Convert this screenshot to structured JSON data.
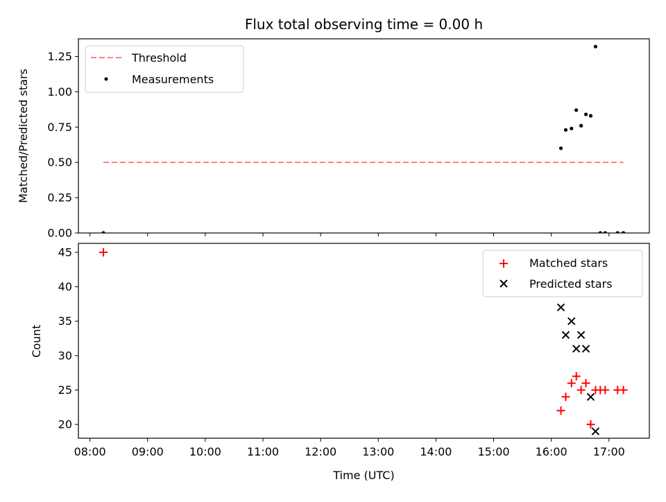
{
  "chart_data": [
    {
      "type": "scatter",
      "title": "Flux total observing time = 0.00 h",
      "xlabel": "",
      "ylabel": "Matched/Predicted stars",
      "xlim": [
        "07:48",
        "17:42"
      ],
      "ylim": [
        0,
        1.375
      ],
      "yticks": [
        "0.00",
        "0.25",
        "0.50",
        "0.75",
        "1.00",
        "1.25"
      ],
      "legend_position": "upper-left",
      "legend": [
        {
          "label": "Threshold",
          "kind": "dashed-line",
          "color": "#ff7f7f"
        },
        {
          "label": "Measurements",
          "kind": "dot",
          "color": "#000000"
        }
      ],
      "threshold": {
        "value": 0.5,
        "x_start": "08:14",
        "x_end": "17:15",
        "color": "#ff7f7f"
      },
      "series": [
        {
          "name": "Measurements",
          "color": "#000000",
          "marker": "dot",
          "points": [
            {
              "x": "08:14",
              "y": 0.0
            },
            {
              "x": "16:10",
              "y": 0.6
            },
            {
              "x": "16:15",
              "y": 0.73
            },
            {
              "x": "16:21",
              "y": 0.74
            },
            {
              "x": "16:26",
              "y": 0.87
            },
            {
              "x": "16:31",
              "y": 0.76
            },
            {
              "x": "16:36",
              "y": 0.84
            },
            {
              "x": "16:41",
              "y": 0.83
            },
            {
              "x": "16:46",
              "y": 1.32
            },
            {
              "x": "16:51",
              "y": 0.0
            },
            {
              "x": "16:56",
              "y": 0.0
            },
            {
              "x": "17:09",
              "y": 0.0
            },
            {
              "x": "17:15",
              "y": 0.0
            }
          ]
        }
      ]
    },
    {
      "type": "scatter",
      "title": "",
      "xlabel": "Time (UTC)",
      "ylabel": "Count",
      "xlim": [
        "07:48",
        "17:42"
      ],
      "ylim": [
        18,
        46.3
      ],
      "yticks": [
        "20",
        "25",
        "30",
        "35",
        "40",
        "45"
      ],
      "xticks": [
        "08:00",
        "09:00",
        "10:00",
        "11:00",
        "12:00",
        "13:00",
        "14:00",
        "15:00",
        "16:00",
        "17:00"
      ],
      "legend_position": "upper-right",
      "legend": [
        {
          "label": "Matched stars",
          "kind": "plus",
          "color": "#ff0000"
        },
        {
          "label": "Predicted stars",
          "kind": "cross",
          "color": "#000000"
        }
      ],
      "series": [
        {
          "name": "Matched stars",
          "color": "#ff0000",
          "marker": "plus",
          "points": [
            {
              "x": "08:14",
              "y": 45
            },
            {
              "x": "16:10",
              "y": 22
            },
            {
              "x": "16:15",
              "y": 24
            },
            {
              "x": "16:21",
              "y": 26
            },
            {
              "x": "16:26",
              "y": 27
            },
            {
              "x": "16:31",
              "y": 25
            },
            {
              "x": "16:36",
              "y": 26
            },
            {
              "x": "16:41",
              "y": 20
            },
            {
              "x": "16:46",
              "y": 25
            },
            {
              "x": "16:51",
              "y": 25
            },
            {
              "x": "16:56",
              "y": 25
            },
            {
              "x": "17:09",
              "y": 25
            },
            {
              "x": "17:15",
              "y": 25
            }
          ]
        },
        {
          "name": "Predicted stars",
          "color": "#000000",
          "marker": "cross",
          "points": [
            {
              "x": "16:10",
              "y": 37
            },
            {
              "x": "16:15",
              "y": 33
            },
            {
              "x": "16:21",
              "y": 35
            },
            {
              "x": "16:26",
              "y": 31
            },
            {
              "x": "16:31",
              "y": 33
            },
            {
              "x": "16:36",
              "y": 31
            },
            {
              "x": "16:41",
              "y": 24
            },
            {
              "x": "16:46",
              "y": 19
            }
          ]
        }
      ]
    }
  ]
}
